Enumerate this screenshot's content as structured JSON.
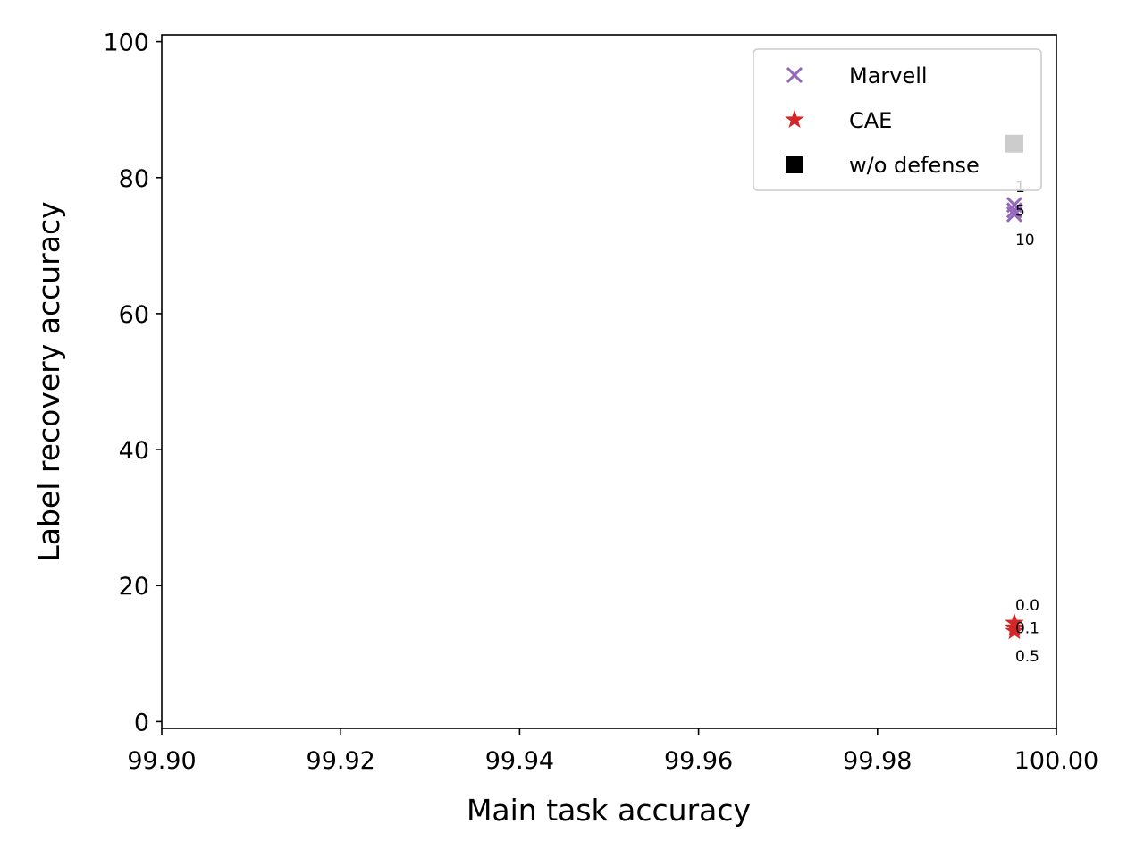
{
  "chart_data": {
    "type": "scatter",
    "title": "",
    "xlabel": "Main task accuracy",
    "ylabel": "Label recovery accuracy",
    "xlim": [
      99.9,
      100.0
    ],
    "ylim": [
      -1,
      101
    ],
    "xticks": [
      "99.90",
      "99.92",
      "99.94",
      "99.96",
      "99.98",
      "100.00"
    ],
    "yticks": [
      "0",
      "20",
      "40",
      "60",
      "80",
      "100"
    ],
    "grid": false,
    "legend_position": "top-right",
    "series": [
      {
        "name": "Marvell",
        "marker": "x",
        "color": "#9467bd",
        "points": [
          {
            "x": 99.9953,
            "y": 76.0,
            "label": "1"
          },
          {
            "x": 99.9953,
            "y": 75.2,
            "label": "5"
          },
          {
            "x": 99.9953,
            "y": 74.6,
            "label": "10"
          }
        ]
      },
      {
        "name": "CAE",
        "marker": "star",
        "color": "#d62728",
        "points": [
          {
            "x": 99.9953,
            "y": 14.5,
            "label": "0.0"
          },
          {
            "x": 99.9953,
            "y": 13.8,
            "label": "0.1"
          },
          {
            "x": 99.9953,
            "y": 13.3,
            "label": "0.5"
          }
        ]
      },
      {
        "name": "w/o defense",
        "marker": "square",
        "color": "#000000",
        "points": [
          {
            "x": 99.9953,
            "y": 85.0,
            "label": ""
          }
        ]
      }
    ]
  }
}
